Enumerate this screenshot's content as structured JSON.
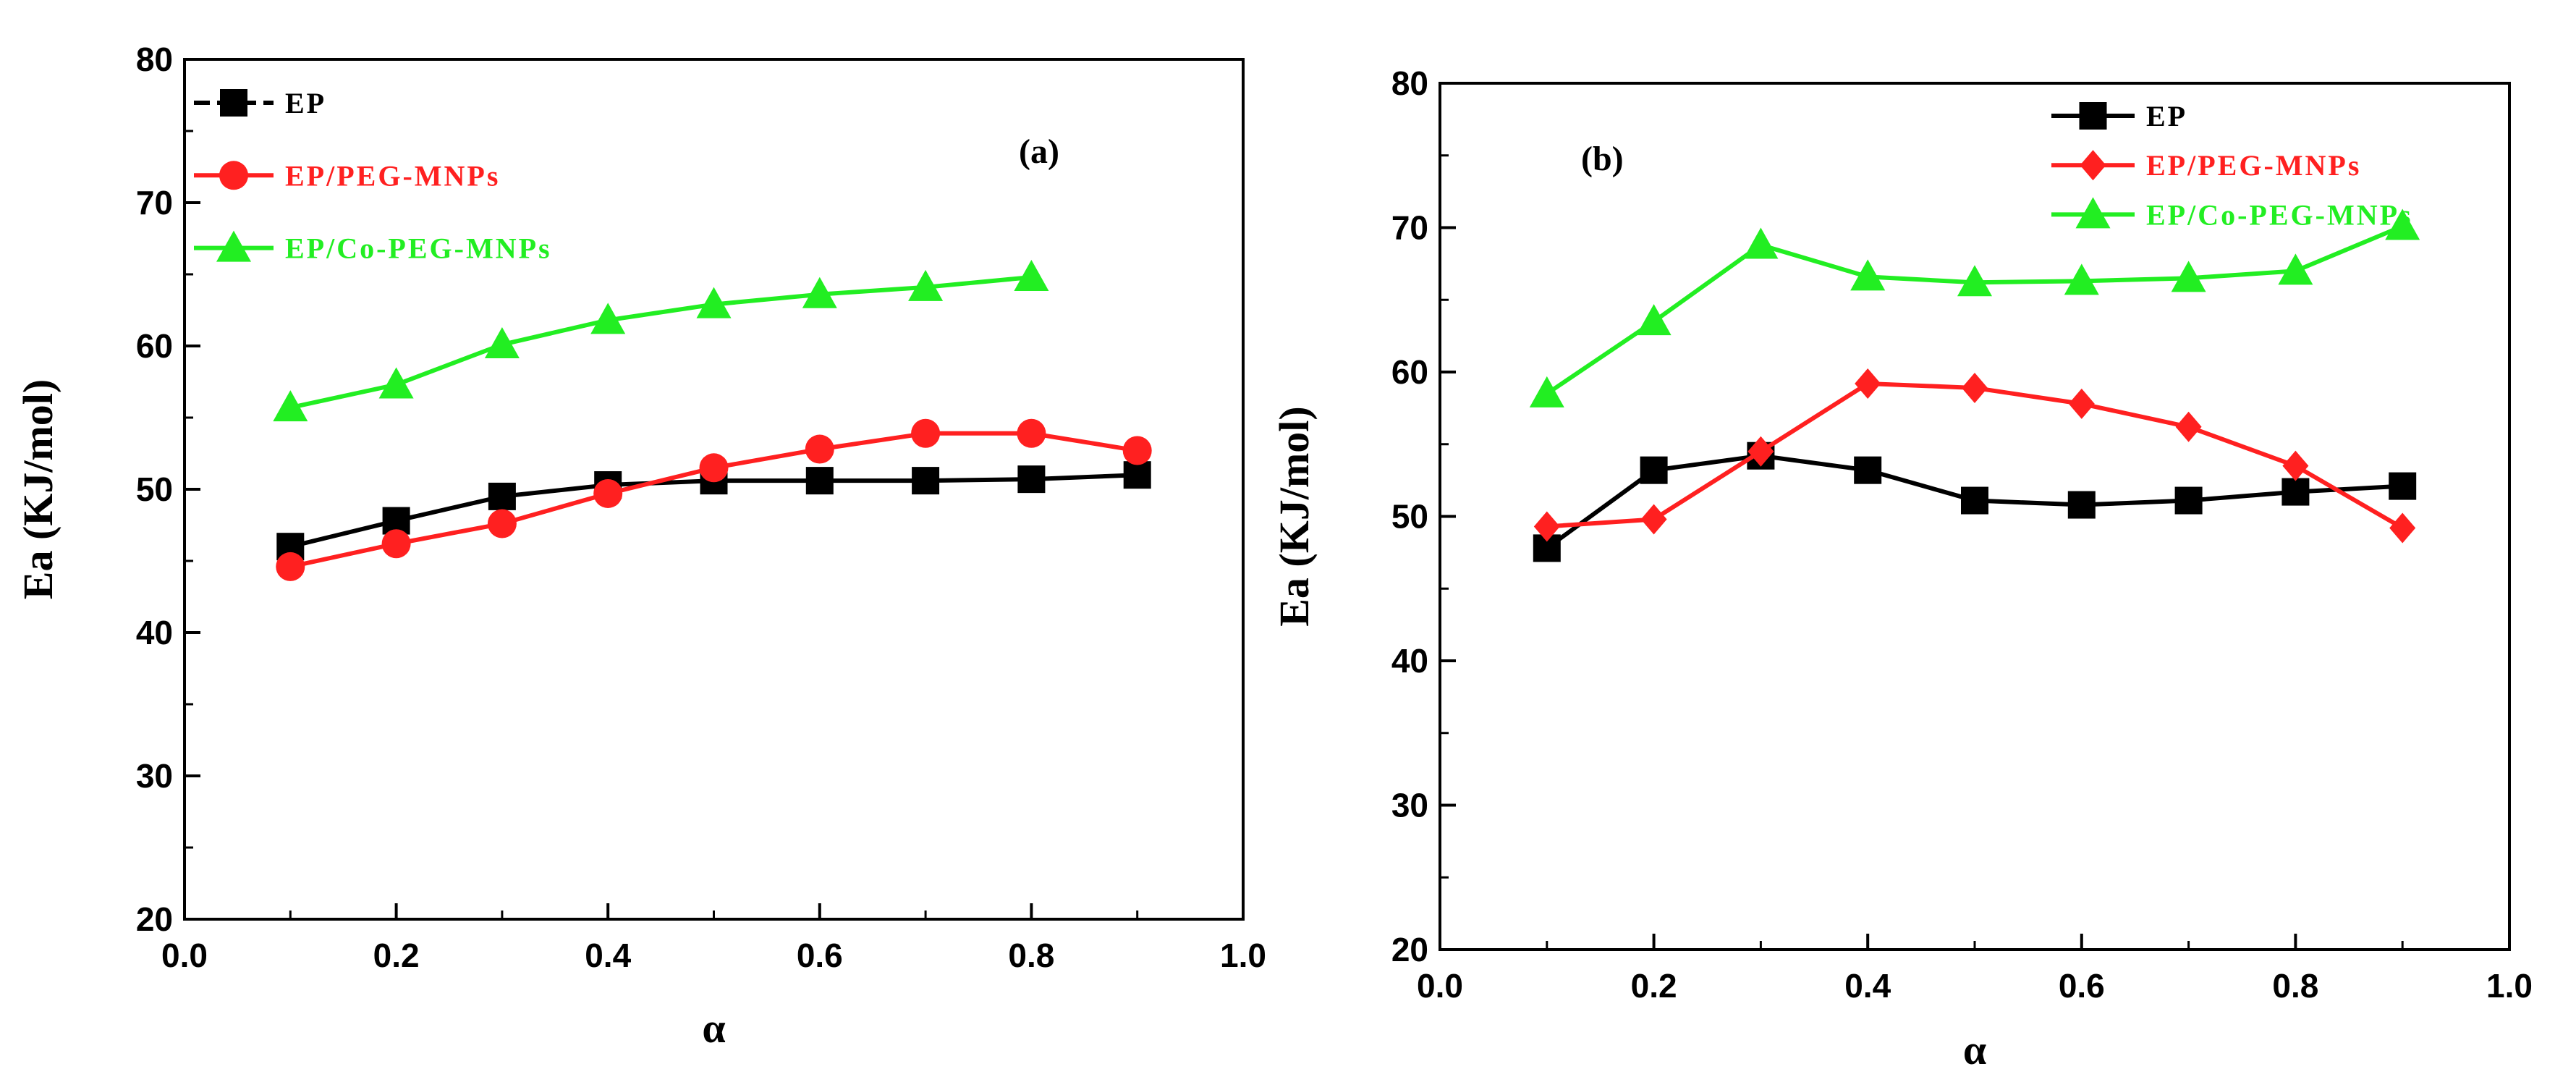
{
  "chart_data": [
    {
      "type": "line",
      "panel_label": "(a)",
      "xlabel": "α",
      "ylabel": "Ea (KJ/mol)",
      "xlim": [
        0.0,
        1.0
      ],
      "ylim": [
        20,
        80
      ],
      "xticks": [
        "0.0",
        "0.2",
        "0.4",
        "0.6",
        "0.8",
        "1.0"
      ],
      "yticks": [
        "20",
        "30",
        "40",
        "50",
        "60",
        "70",
        "80"
      ],
      "legend_position": "top-left",
      "series": [
        {
          "name": "EP",
          "color": "#000000",
          "marker": "square",
          "x": [
            0.1,
            0.2,
            0.3,
            0.4,
            0.5,
            0.6,
            0.7,
            0.8,
            0.9
          ],
          "values": [
            46.0,
            47.8,
            49.5,
            50.3,
            50.6,
            50.6,
            50.6,
            50.7,
            51.0
          ]
        },
        {
          "name": "EP/PEG-MNPs",
          "color": "#ff2020",
          "marker": "circle",
          "x": [
            0.1,
            0.2,
            0.3,
            0.4,
            0.5,
            0.6,
            0.7,
            0.8,
            0.9
          ],
          "values": [
            44.6,
            46.2,
            47.6,
            49.7,
            51.5,
            52.8,
            53.9,
            53.9,
            52.7
          ]
        },
        {
          "name": "EP/Co-PEG-MNPs",
          "color": "#22ee22",
          "marker": "triangle",
          "x": [
            0.1,
            0.2,
            0.3,
            0.4,
            0.5,
            0.6,
            0.7,
            0.8
          ],
          "values": [
            55.7,
            57.3,
            60.1,
            61.8,
            62.9,
            63.6,
            64.1,
            64.8
          ]
        }
      ]
    },
    {
      "type": "line",
      "panel_label": "(b)",
      "xlabel": "α",
      "ylabel": "Ea (KJ/mol)",
      "xlim": [
        0.0,
        1.0
      ],
      "ylim": [
        20,
        80
      ],
      "xticks": [
        "0.0",
        "0.2",
        "0.4",
        "0.6",
        "0.8",
        "1.0"
      ],
      "yticks": [
        "20",
        "30",
        "40",
        "50",
        "60",
        "70",
        "80"
      ],
      "legend_position": "top-right",
      "series": [
        {
          "name": "EP",
          "color": "#000000",
          "marker": "square",
          "x": [
            0.1,
            0.2,
            0.3,
            0.4,
            0.5,
            0.6,
            0.7,
            0.8,
            0.9
          ],
          "values": [
            47.8,
            53.2,
            54.2,
            53.2,
            51.1,
            50.8,
            51.1,
            51.7,
            52.1
          ]
        },
        {
          "name": "EP/PEG-MNPs",
          "color": "#ff2020",
          "marker": "diamond",
          "x": [
            0.1,
            0.2,
            0.3,
            0.4,
            0.5,
            0.6,
            0.7,
            0.8,
            0.9
          ],
          "values": [
            49.3,
            49.8,
            54.5,
            59.2,
            58.9,
            57.8,
            56.2,
            53.5,
            49.2
          ]
        },
        {
          "name": "EP/Co-PEG-MNPs",
          "color": "#22ee22",
          "marker": "triangle",
          "x": [
            0.1,
            0.2,
            0.3,
            0.4,
            0.5,
            0.6,
            0.7,
            0.8,
            0.9
          ],
          "values": [
            58.5,
            63.5,
            68.8,
            66.6,
            66.2,
            66.3,
            66.5,
            67.0,
            70.1
          ]
        }
      ]
    }
  ]
}
